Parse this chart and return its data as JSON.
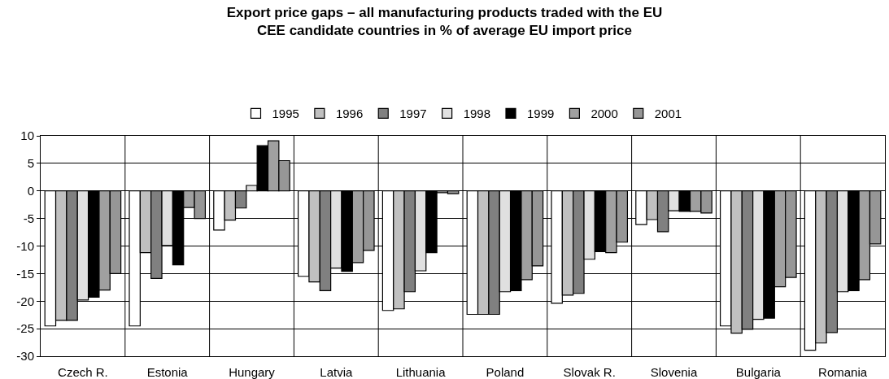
{
  "chart_data": {
    "type": "bar",
    "title": "Export price gaps – all manufacturing products traded with the EU\nCEE candidate countries in % of average EU import price",
    "categories": [
      "Czech R.",
      "Estonia",
      "Hungary",
      "Latvia",
      "Lithuania",
      "Poland",
      "Slovak R.",
      "Slovenia",
      "Bulgaria",
      "Romania"
    ],
    "series": [
      {
        "name": "1995",
        "color": "#ffffff",
        "values": [
          -24.5,
          -24.5,
          -7.1,
          -15.5,
          -21.7,
          -22.4,
          -20.4,
          -6.1,
          -24.5,
          -28.9
        ]
      },
      {
        "name": "1996",
        "color": "#c0c0c0",
        "values": [
          -23.5,
          -11.2,
          -5.3,
          -16.5,
          -21.4,
          -22.4,
          -18.9,
          -5.2,
          -25.8,
          -27.6
        ]
      },
      {
        "name": "1997",
        "color": "#808080",
        "values": [
          -23.5,
          -15.9,
          -3.1,
          -18.1,
          -18.3,
          -22.4,
          -18.6,
          -7.4,
          -25.1,
          -25.7
        ]
      },
      {
        "name": "1998",
        "color": "#e0e0e0",
        "values": [
          -19.8,
          -9.9,
          1.0,
          -14.0,
          -14.5,
          -18.3,
          -12.4,
          -3.6,
          -23.3,
          -18.3
        ]
      },
      {
        "name": "1999",
        "color": "#000000",
        "values": [
          -19.3,
          -13.4,
          8.2,
          -14.6,
          -11.2,
          -18.1,
          -11.0,
          -3.7,
          -23.1,
          -18.1
        ]
      },
      {
        "name": "2000",
        "color": "#a0a0a0",
        "values": [
          -18.0,
          -3.0,
          9.1,
          -13.0,
          -0.3,
          -16.1,
          -11.2,
          -3.7,
          -17.4,
          -16.1
        ]
      },
      {
        "name": "2001",
        "color": "#969696",
        "values": [
          -15.0,
          -5.0,
          5.5,
          -10.8,
          -0.5,
          -13.6,
          -9.3,
          -4.0,
          -15.7,
          -9.6
        ]
      }
    ],
    "ylim": [
      -30,
      10
    ],
    "yticks": [
      -30,
      -25,
      -20,
      -15,
      -10,
      -5,
      0,
      5,
      10
    ],
    "grid": true,
    "legend": "top"
  }
}
